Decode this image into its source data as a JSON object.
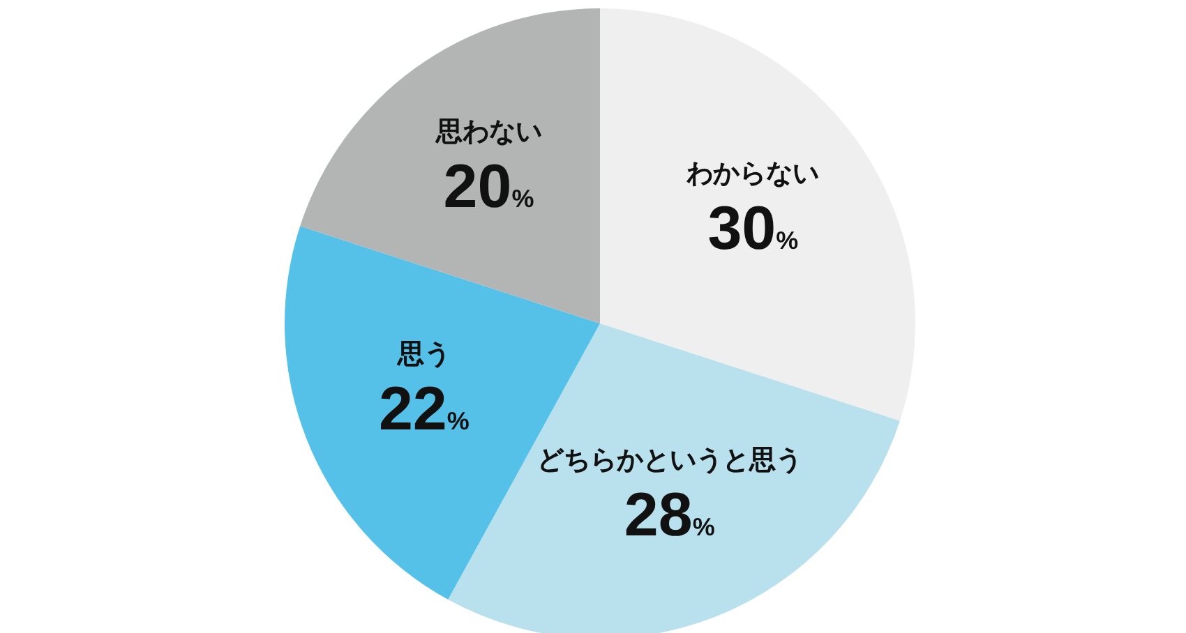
{
  "chart_data": {
    "type": "pie",
    "categories": [
      "わからない",
      "どちらかというと思う",
      "思う",
      "思わない"
    ],
    "values": [
      30,
      28,
      22,
      20
    ],
    "colors": [
      "#efefef",
      "#b9e1ed",
      "#55c1e8",
      "#b3b4b4"
    ],
    "data_labels": true,
    "value_labels": [
      "30%",
      "28%",
      "22%",
      "20%"
    ]
  }
}
